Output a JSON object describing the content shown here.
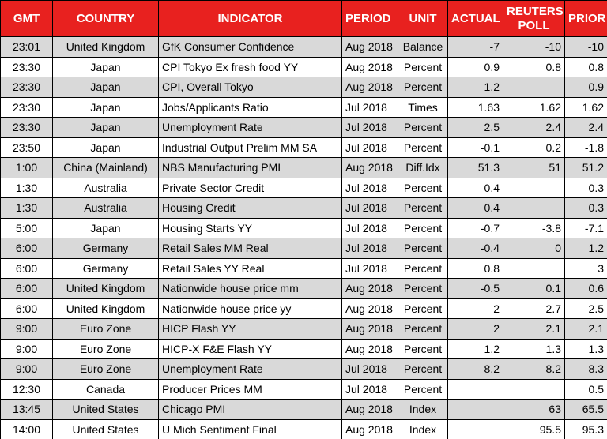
{
  "table": {
    "header": [
      "GMT",
      "COUNTRY",
      "INDICATOR",
      "PERIOD",
      "UNIT",
      "ACTUAL",
      "REUTERS POLL",
      "PRIOR"
    ],
    "rows": [
      [
        "23:01",
        "United Kingdom",
        "GfK Consumer Confidence",
        "Aug 2018",
        "Balance",
        "-7",
        "-10",
        "-10"
      ],
      [
        "23:30",
        "Japan",
        "CPI Tokyo Ex fresh food YY",
        "Aug 2018",
        "Percent",
        "0.9",
        "0.8",
        "0.8"
      ],
      [
        "23:30",
        "Japan",
        "CPI, Overall Tokyo",
        "Aug 2018",
        "Percent",
        "1.2",
        null,
        "0.9"
      ],
      [
        "23:30",
        "Japan",
        "Jobs/Applicants Ratio",
        "Jul 2018",
        "Times",
        "1.63",
        "1.62",
        "1.62"
      ],
      [
        "23:30",
        "Japan",
        "Unemployment Rate",
        "Jul 2018",
        "Percent",
        "2.5",
        "2.4",
        "2.4"
      ],
      [
        "23:50",
        "Japan",
        "Industrial Output Prelim MM SA",
        "Jul 2018",
        "Percent",
        "-0.1",
        "0.2",
        "-1.8"
      ],
      [
        "1:00",
        "China (Mainland)",
        "NBS Manufacturing PMI",
        "Aug 2018",
        "Diff.Idx",
        "51.3",
        "51",
        "51.2"
      ],
      [
        "1:30",
        "Australia",
        "Private Sector Credit",
        "Jul 2018",
        "Percent",
        "0.4",
        null,
        "0.3"
      ],
      [
        "1:30",
        "Australia",
        "Housing Credit",
        "Jul 2018",
        "Percent",
        "0.4",
        null,
        "0.3"
      ],
      [
        "5:00",
        "Japan",
        "Housing Starts YY",
        "Jul 2018",
        "Percent",
        "-0.7",
        "-3.8",
        "-7.1"
      ],
      [
        "6:00",
        "Germany",
        "Retail Sales MM Real",
        "Jul 2018",
        "Percent",
        "-0.4",
        "0",
        "1.2"
      ],
      [
        "6:00",
        "Germany",
        "Retail Sales YY Real",
        "Jul 2018",
        "Percent",
        "0.8",
        null,
        "3"
      ],
      [
        "6:00",
        "United Kingdom",
        "Nationwide house price mm",
        "Aug 2018",
        "Percent",
        "-0.5",
        "0.1",
        "0.6"
      ],
      [
        "6:00",
        "United Kingdom",
        "Nationwide house price yy",
        "Aug 2018",
        "Percent",
        "2",
        "2.7",
        "2.5"
      ],
      [
        "9:00",
        "Euro Zone",
        "HICP Flash YY",
        "Aug 2018",
        "Percent",
        "2",
        "2.1",
        "2.1"
      ],
      [
        "9:00",
        "Euro Zone",
        "HICP-X F&E Flash YY",
        "Aug 2018",
        "Percent",
        "1.2",
        "1.3",
        "1.3"
      ],
      [
        "9:00",
        "Euro Zone",
        "Unemployment Rate",
        "Jul 2018",
        "Percent",
        "8.2",
        "8.2",
        "8.3"
      ],
      [
        "12:30",
        "Canada",
        "Producer Prices MM",
        "Jul 2018",
        "Percent",
        null,
        null,
        "0.5"
      ],
      [
        "13:45",
        "United States",
        "Chicago PMI",
        "Aug 2018",
        "Index",
        null,
        "63",
        "65.5"
      ],
      [
        "14:00",
        "United States",
        "U Mich Sentiment Final",
        "Aug 2018",
        "Index",
        null,
        "95.5",
        "95.3"
      ]
    ]
  }
}
